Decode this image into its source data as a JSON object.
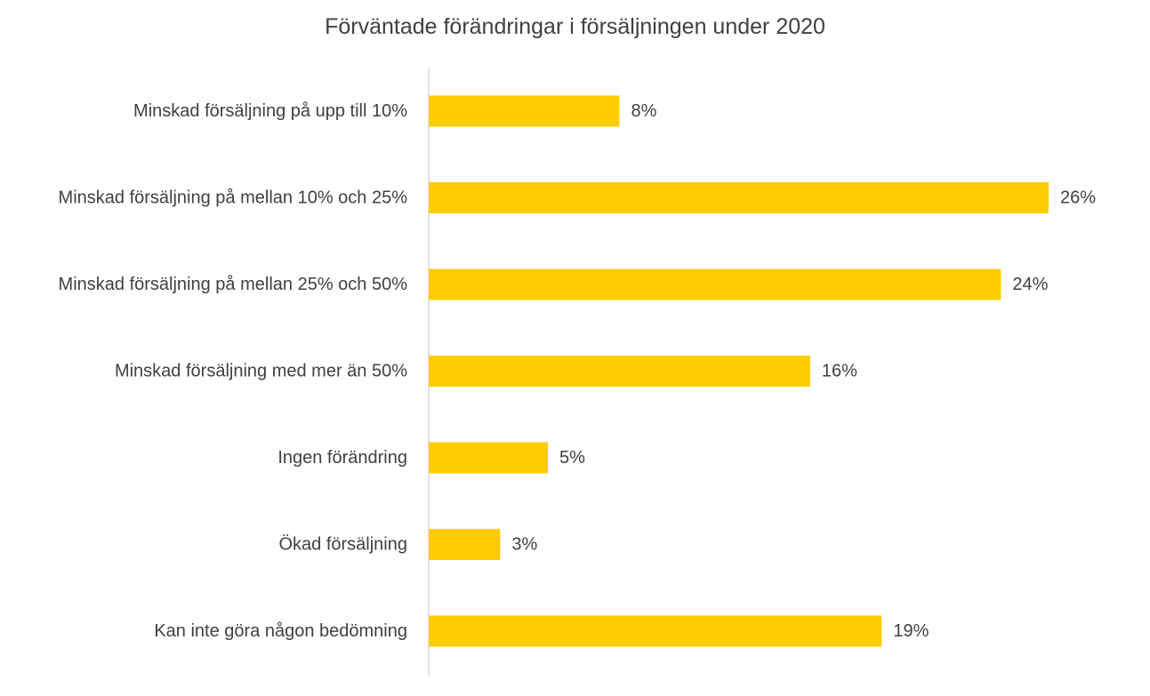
{
  "chart_data": {
    "type": "bar",
    "orientation": "horizontal",
    "title": "Förväntade förändringar i försäljningen under 2020",
    "xlabel": "",
    "ylabel": "",
    "categories": [
      "Minskad försäljning på upp till 10%",
      "Minskad försäljning på mellan 10% och 25%",
      "Minskad försäljning på mellan 25% och 50%",
      "Minskad försäljning med mer än 50%",
      "Ingen förändring",
      "Ökad försäljning",
      "Kan inte göra någon bedömning"
    ],
    "values": [
      8,
      26,
      24,
      16,
      5,
      3,
      19
    ],
    "data_labels": [
      "8%",
      "26%",
      "24%",
      "16%",
      "5%",
      "3%",
      "19%"
    ],
    "value_unit": "%",
    "xlim": [
      0,
      26
    ],
    "grid": false,
    "legend": "none",
    "bar_color": "#FFCC00",
    "axis_color": "#D9D9D9",
    "text_color": "#404040"
  }
}
